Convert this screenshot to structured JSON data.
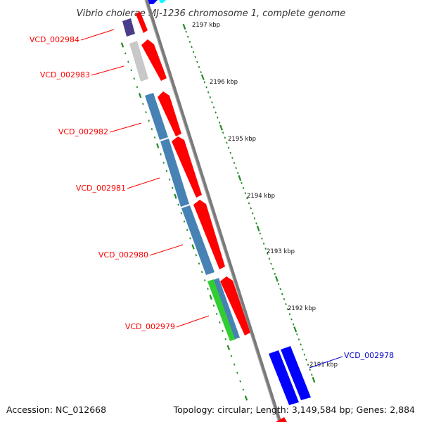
{
  "title": "Vibrio cholerae MJ-1236 chromosome 1, complete genome",
  "footer": {
    "accession": "Accession: NC_012668",
    "summary": "Topology: circular; Length: 3,149,584 bp; Genes: 2,884"
  },
  "colors": {
    "backbone": "#7a7a7a",
    "tick": "#228b22",
    "red": "#ff0000",
    "steelblue": "#4682b4",
    "gray": "#c8c8c8",
    "purple": "#483d8b",
    "green": "#32cd32",
    "blue": "#0000ff",
    "label_red": "#ff0000",
    "label_blue": "#0000cc"
  },
  "kbp_labels": [
    "2197 kbp",
    "2196 kbp",
    "2195 kbp",
    "2194 kbp",
    "2193 kbp",
    "2192 kbp",
    "2191 kbp"
  ],
  "gene_labels": [
    {
      "text": "VCD_002984",
      "color": "label_red"
    },
    {
      "text": "VCD_002983",
      "color": "label_red"
    },
    {
      "text": "VCD_002982",
      "color": "label_red"
    },
    {
      "text": "VCD_002981",
      "color": "label_red"
    },
    {
      "text": "VCD_002980",
      "color": "label_red"
    },
    {
      "text": "VCD_002979",
      "color": "label_red"
    },
    {
      "text": "VCD_002978",
      "color": "label_blue"
    }
  ]
}
